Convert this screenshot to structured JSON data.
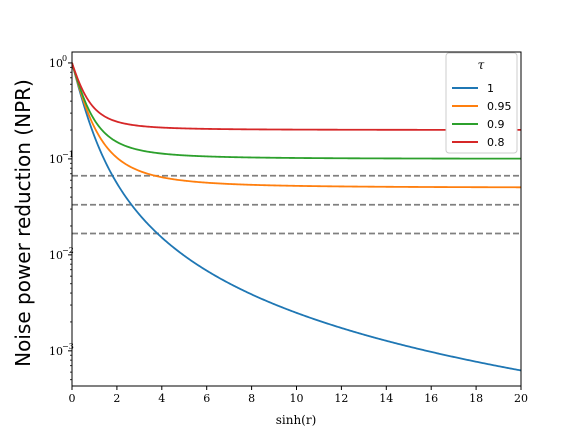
{
  "chart_data": {
    "type": "line",
    "title": "",
    "xlabel": "sinh(r)",
    "ylabel": "Noise power reduction (NPR)",
    "xlim": [
      0,
      20
    ],
    "ylim": [
      0.00043,
      1.3
    ],
    "yscale": "log",
    "grid": false,
    "legend": {
      "title": "τ",
      "position": "top-right"
    },
    "xticks": [
      "0",
      "2",
      "4",
      "6",
      "8",
      "10",
      "12",
      "14",
      "16",
      "18",
      "20"
    ],
    "yticks": [
      {
        "base": "10",
        "exp": "0"
      },
      {
        "base": "10",
        "exp": "−1"
      },
      {
        "base": "10",
        "exp": "−2"
      },
      {
        "base": "10",
        "exp": "−3"
      }
    ],
    "series": [
      {
        "name": "1",
        "color": "#1f77b4",
        "tau": 1
      },
      {
        "name": "0.95",
        "color": "#ff7f0e",
        "tau": 0.95
      },
      {
        "name": "0.9",
        "color": "#2ca02c",
        "tau": 0.9
      },
      {
        "name": "0.8",
        "color": "#d62728",
        "tau": 0.8
      }
    ],
    "reference_lines": {
      "style": "dashed",
      "color": "#808080",
      "y": [
        0.0167,
        0.0333,
        0.0667
      ]
    }
  }
}
